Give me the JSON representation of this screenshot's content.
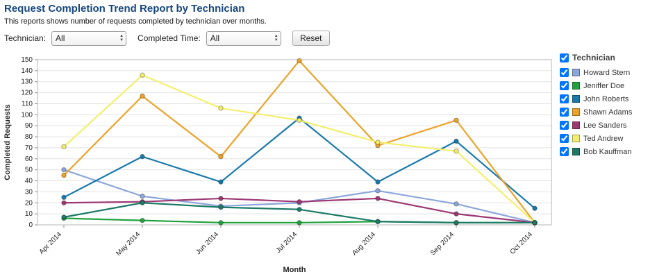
{
  "header": {
    "title": "Request Completion Trend Report by Technician",
    "subtitle": "This reports shows number of requests completed by technician over months."
  },
  "filters": {
    "technician_label": "Technician:",
    "technician_value": "All",
    "completed_time_label": "Completed Time:",
    "completed_time_value": "All",
    "reset_label": "Reset"
  },
  "legend": {
    "title": "Technician"
  },
  "chart_data": {
    "type": "line",
    "title": "Request Completion Trend Report by Technician",
    "xlabel": "Month",
    "ylabel": "Completed Requests",
    "ylim": [
      0,
      150
    ],
    "ytick_step": 10,
    "grid": "horizontal",
    "legend_position": "right",
    "categories": [
      "Apr 2014",
      "May 2014",
      "Jun 2014",
      "Jul 2014",
      "Aug 2014",
      "Sep 2014",
      "Oct 2014"
    ],
    "series": [
      {
        "name": "Howard Stern",
        "color": "#8ca6dc",
        "values": [
          50,
          26,
          17,
          20,
          31,
          19,
          2
        ]
      },
      {
        "name": "Jeniffer Doe",
        "color": "#22a23f",
        "values": [
          6,
          4,
          2,
          2,
          3,
          2,
          2
        ]
      },
      {
        "name": "John Roberts",
        "color": "#1879ad",
        "values": [
          25,
          62,
          39,
          97,
          39,
          76,
          15
        ]
      },
      {
        "name": "Shawn Adams",
        "color": "#eea227",
        "values": [
          45,
          117,
          62,
          149,
          72,
          95,
          2
        ]
      },
      {
        "name": "Lee Sanders",
        "color": "#9c3973",
        "values": [
          20,
          21,
          24,
          21,
          24,
          10,
          2
        ]
      },
      {
        "name": "Ted Andrew",
        "color": "#f3ef6d",
        "values": [
          71,
          136,
          106,
          95,
          75,
          67,
          2
        ]
      },
      {
        "name": "Bob Kauffman",
        "color": "#1c7a67",
        "values": [
          7,
          20,
          16,
          14,
          3,
          2,
          2
        ]
      }
    ]
  }
}
